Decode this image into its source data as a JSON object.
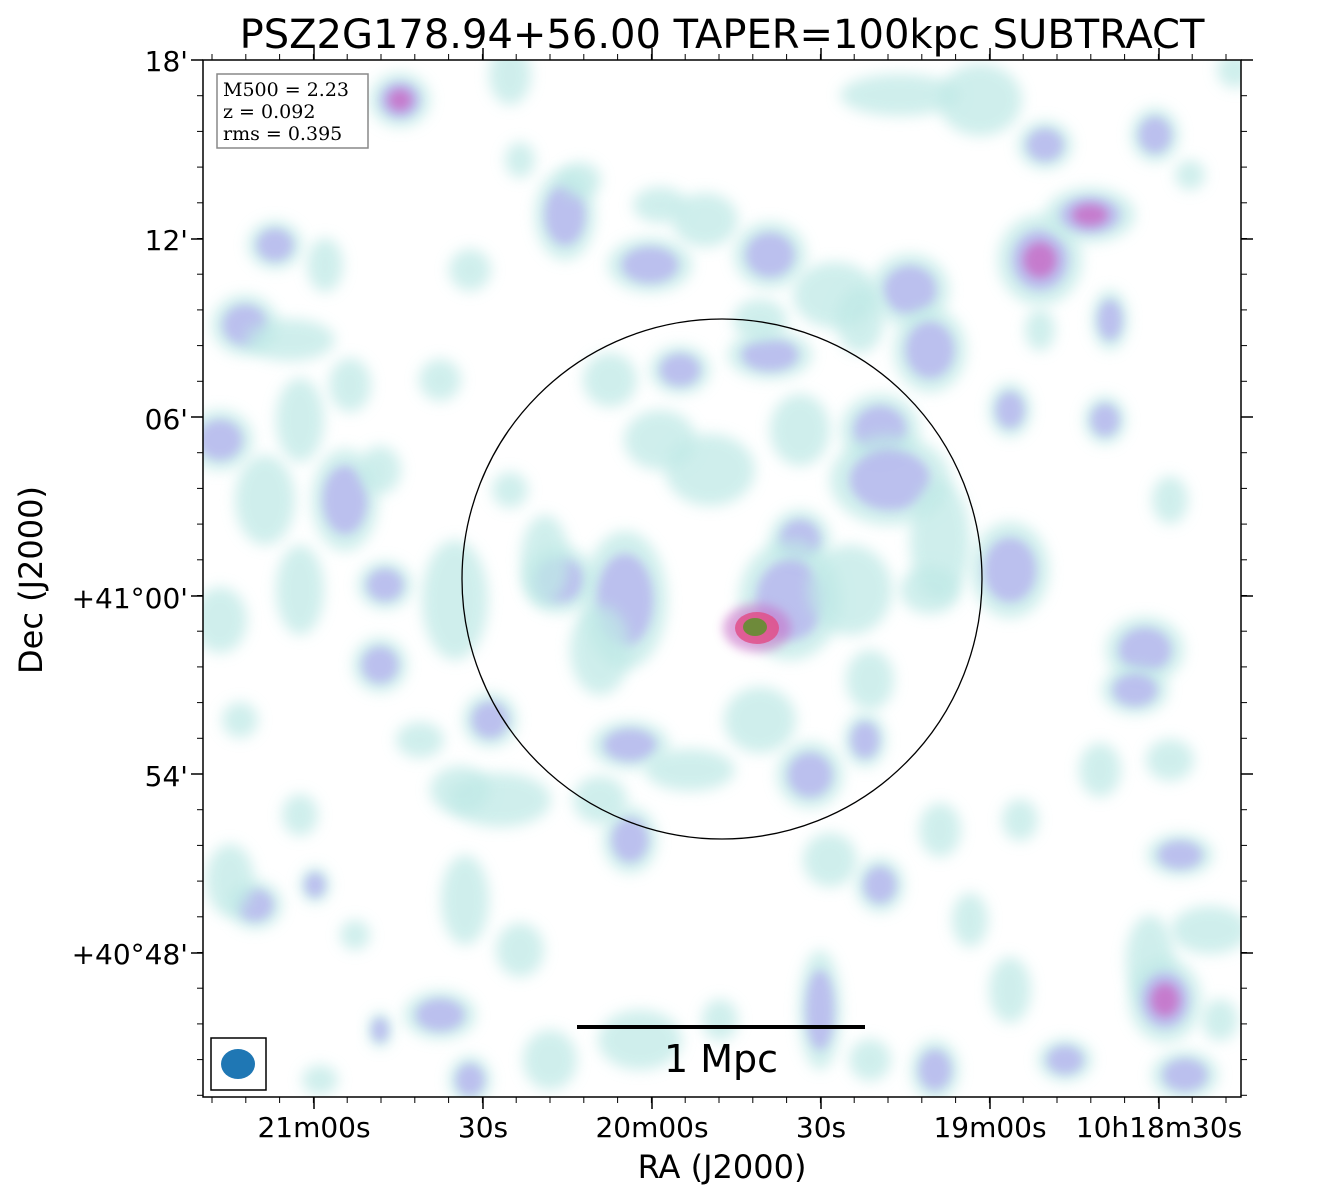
{
  "title": "PSZ2G178.94+56.00 TAPER=100kpc SUBTRACT",
  "info_box": {
    "lines": [
      "M500 = 2.23",
      "z = 0.092",
      "rms = 0.395"
    ]
  },
  "axes": {
    "xlabel": "RA (J2000)",
    "ylabel": "Dec (J2000)",
    "x_ticks": [
      "21m00s",
      "30s",
      "20m00s",
      "30s",
      "19m00s",
      "10h18m30s"
    ],
    "y_ticks": [
      "18'",
      "12'",
      "06'",
      "+41°00'",
      "54'",
      "+40°48'"
    ]
  },
  "scalebar": {
    "label": "1 Mpc"
  },
  "colors": {
    "beam": "#1f77b4",
    "circle": "#000000",
    "emission_low": "#bfe9e6",
    "emission_mid": "#b8b8ef",
    "emission_high": "#c86fc8",
    "peak_core": "#6e8a3a",
    "peak_ring": "#e0508a"
  }
}
